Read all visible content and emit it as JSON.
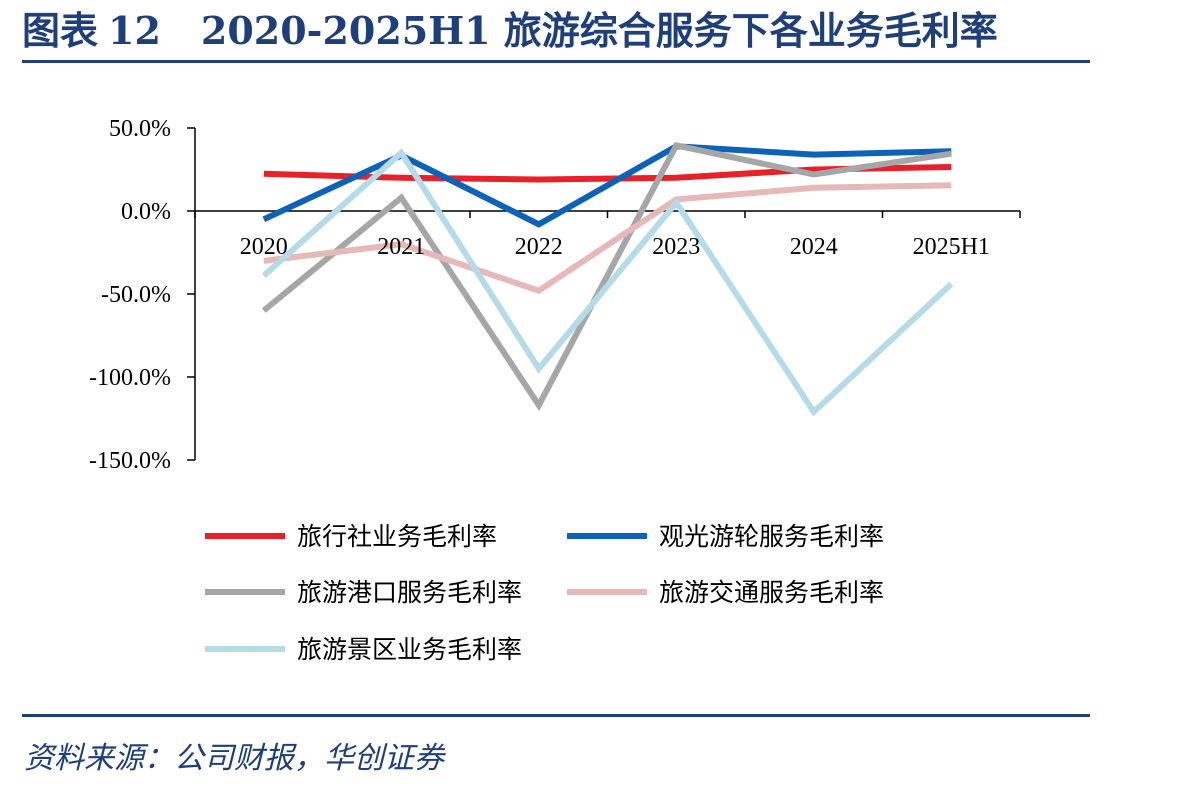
{
  "header": {
    "figure_label": "图表",
    "figure_number": "12",
    "title": "2020-2025H1 旅游综合服务下各业务毛利率"
  },
  "footer": {
    "source": "资料来源：公司财报，华创证券"
  },
  "chart_data": {
    "type": "line",
    "categories": [
      "2020",
      "2021",
      "2022",
      "2023",
      "2024",
      "2025H1"
    ],
    "y_ticks": [
      "50.0%",
      "0.0%",
      "-50.0%",
      "-100.0%",
      "-150.0%"
    ],
    "ylim": [
      -150,
      50
    ],
    "y_unit": "%",
    "grid": false,
    "legend_position": "bottom",
    "series": [
      {
        "name": "旅行社业务毛利率",
        "color": "#e8202a",
        "values": [
          22.5,
          20.0,
          19.0,
          20.0,
          25.0,
          26.5
        ]
      },
      {
        "name": "观光游轮服务毛利率",
        "color": "#0b62b8",
        "values": [
          -5.0,
          33.5,
          -8.0,
          39.0,
          34.0,
          36.0
        ]
      },
      {
        "name": "旅游港口服务毛利率",
        "color": "#a6a6a6",
        "values": [
          -60.0,
          8.0,
          -117.0,
          39.5,
          22.0,
          34.5
        ]
      },
      {
        "name": "旅游交通服务毛利率",
        "color": "#e6b8b8",
        "values": [
          -30.0,
          -20.0,
          -48.0,
          7.0,
          14.0,
          15.5
        ]
      },
      {
        "name": "旅游景区业务毛利率",
        "color": "#b4dbe7",
        "values": [
          -39.0,
          35.0,
          -95.0,
          5.0,
          -121.0,
          -44.0
        ]
      }
    ]
  }
}
